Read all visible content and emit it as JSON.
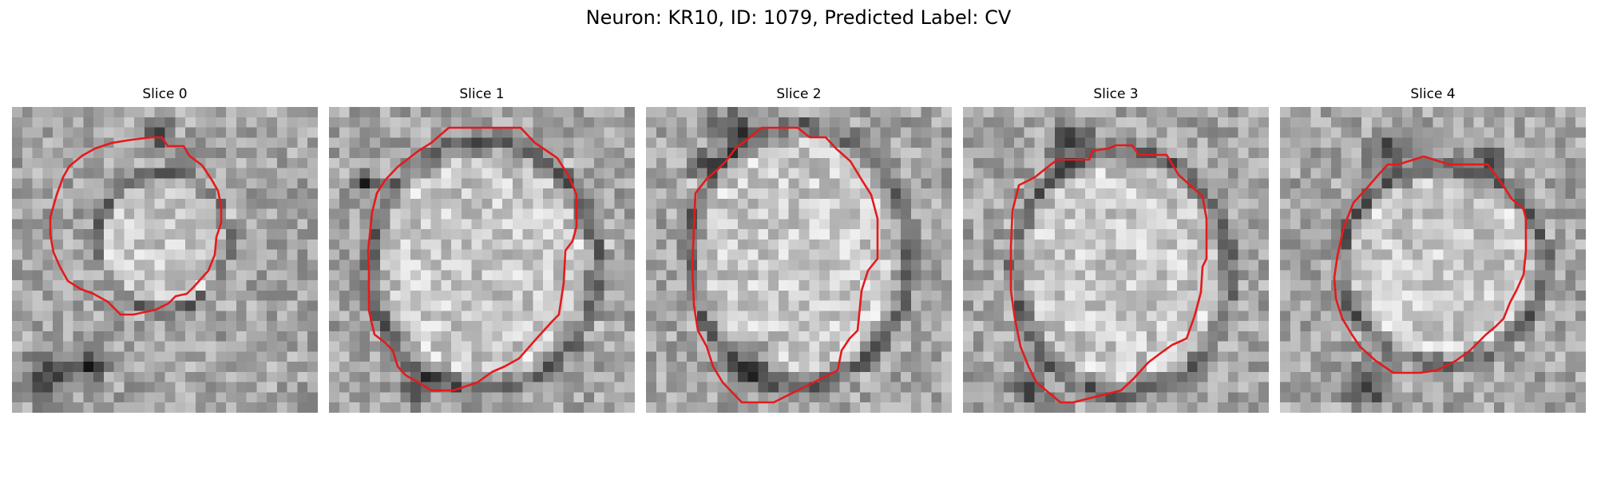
{
  "figure": {
    "title": "Neuron: KR10, ID: 1079, Predicted Label: CV"
  },
  "panels": [
    {
      "title": "Slice 0"
    },
    {
      "title": "Slice 1"
    },
    {
      "title": "Slice 2"
    },
    {
      "title": "Slice 3"
    },
    {
      "title": "Slice 4"
    }
  ],
  "colors": {
    "contour": "#e41a1c",
    "colormap": "grayscale"
  }
}
